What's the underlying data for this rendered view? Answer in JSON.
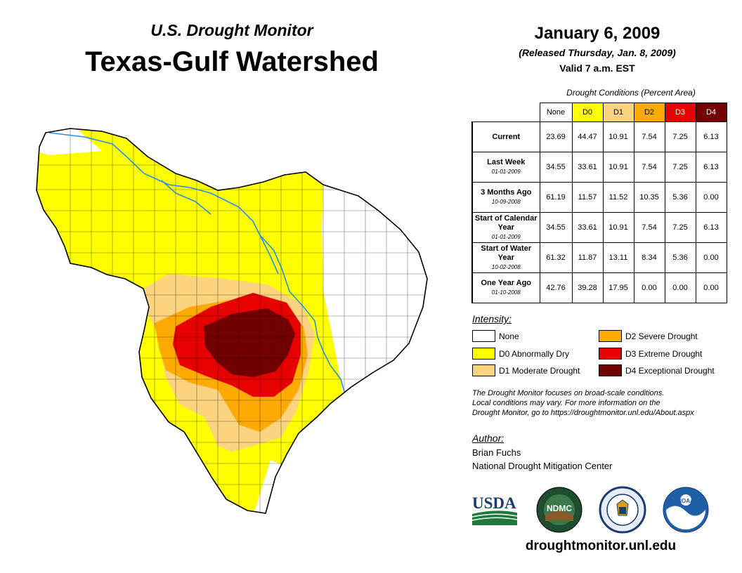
{
  "header": {
    "subtitle": "U.S. Drought Monitor",
    "title": "Texas-Gulf Watershed",
    "date": "January 6, 2009",
    "released": "(Released Thursday, Jan. 8, 2009)",
    "valid": "Valid 7 a.m. EST"
  },
  "table": {
    "caption": "Drought Conditions (Percent Area)",
    "columns": [
      "None",
      "D0",
      "D1",
      "D2",
      "D3",
      "D4"
    ],
    "rows": [
      {
        "label": "Current",
        "date": "",
        "values": [
          "23.69",
          "44.47",
          "10.91",
          "7.54",
          "7.25",
          "6.13"
        ]
      },
      {
        "label": "Last Week",
        "date": "01-01-2009",
        "values": [
          "34.55",
          "33.61",
          "10.91",
          "7.54",
          "7.25",
          "6.13"
        ]
      },
      {
        "label": "3 Months Ago",
        "date": "10-09-2008",
        "values": [
          "61.19",
          "11.57",
          "11.52",
          "10.35",
          "5.36",
          "0.00"
        ]
      },
      {
        "label": "Start of Calendar Year",
        "date": "01-01-2009",
        "values": [
          "34.55",
          "33.61",
          "10.91",
          "7.54",
          "7.25",
          "6.13"
        ]
      },
      {
        "label": "Start of Water Year",
        "date": "10-02-2008",
        "values": [
          "61.32",
          "11.87",
          "13.11",
          "8.34",
          "5.36",
          "0.00"
        ]
      },
      {
        "label": "One Year Ago",
        "date": "01-10-2008",
        "values": [
          "42.76",
          "39.28",
          "17.95",
          "0.00",
          "0.00",
          "0.00"
        ]
      }
    ]
  },
  "legend": {
    "title": "Intensity:",
    "items": [
      {
        "label": "None",
        "color": "#ffffff"
      },
      {
        "label": "D0 Abnormally Dry",
        "color": "#ffff00"
      },
      {
        "label": "D1 Moderate Drought",
        "color": "#fcd37f"
      },
      {
        "label": "D2 Severe Drought",
        "color": "#ffaa00"
      },
      {
        "label": "D3 Extreme Drought",
        "color": "#e60000"
      },
      {
        "label": "D4 Exceptional Drought",
        "color": "#730000"
      }
    ]
  },
  "note": {
    "line1": "The Drought Monitor focuses on broad-scale conditions.",
    "line2": "Local conditions may vary. For more information on the",
    "line3": "Drought Monitor, go to https://droughtmonitor.unl.edu/About.aspx"
  },
  "author": {
    "title": "Author:",
    "name": "Brian Fuchs",
    "org": "National Drought Mitigation Center"
  },
  "logos": {
    "usda": "USDA",
    "ndmc": "NDMC",
    "noaa": "NOAA"
  },
  "footer": {
    "url": "droughtmonitor.unl.edu"
  }
}
